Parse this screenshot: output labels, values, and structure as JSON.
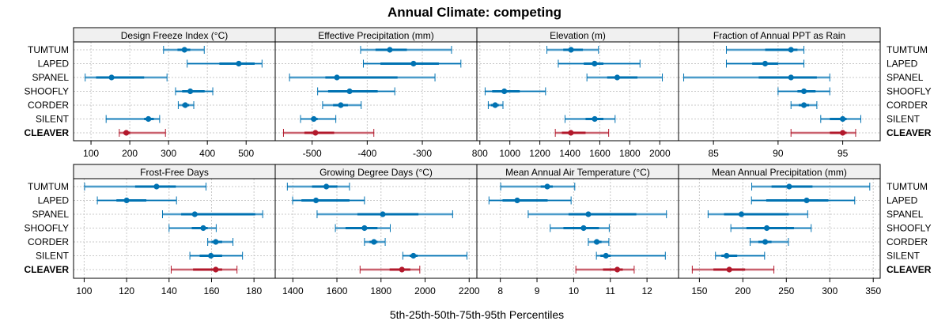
{
  "chart_data": {
    "type": "dotplot-percentiles",
    "title": "Annual Climate: competing",
    "xlabel": "5th-25th-50th-75th-95th Percentiles",
    "ylabel": "",
    "grid": true,
    "series_order": [
      "TUMTUM",
      "LAPED",
      "SPANEL",
      "SHOOFLY",
      "CORDER",
      "SILENT",
      "CLEAVER"
    ],
    "highlighted": "CLEAVER",
    "colors": {
      "default": "#0072b2",
      "default_light": "#6baed6",
      "highlight": "#b2182b",
      "highlight_light": "#d6868f",
      "strip_bg": "#f0f0f0",
      "grid": "#c8c8c8"
    },
    "label_sides": {
      "top_row": "both",
      "bottom_row": "both"
    },
    "percentile_keys": [
      "p5",
      "p25",
      "p50",
      "p75",
      "p95"
    ],
    "panels": [
      {
        "name": "Design Freeze Index (°C)",
        "xlim": [
          55,
          575
        ],
        "ticks": [
          100,
          200,
          300,
          400,
          500
        ],
        "tick_labels": [
          "100",
          "200",
          "300",
          "400",
          "500"
        ],
        "rows": {
          "TUMTUM": [
            287,
            323,
            341,
            356,
            392
          ],
          "LAPED": [
            348,
            431,
            481,
            522,
            541
          ],
          "SPANEL": [
            85,
            113,
            153,
            237,
            296
          ],
          "SHOOFLY": [
            318,
            335,
            356,
            393,
            414
          ],
          "CORDER": [
            325,
            335,
            343,
            353,
            365
          ],
          "SILENT": [
            139,
            237,
            248,
            262,
            277
          ],
          "CLEAVER": [
            173,
            183,
            191,
            201,
            292
          ]
        }
      },
      {
        "name": "Effective Precipitation (mm)",
        "xlim": [
          -567,
          -201
        ],
        "ticks": [
          -500,
          -400,
          -300
        ],
        "tick_labels": [
          "-500",
          "-400",
          "-300"
        ],
        "rows": {
          "TUMTUM": [
            -412,
            -385,
            -359,
            -328,
            -247
          ],
          "LAPED": [
            -407,
            -376,
            -316,
            -270,
            -230
          ],
          "SPANEL": [
            -541,
            -476,
            -455,
            -345,
            -277
          ],
          "SHOOFLY": [
            -490,
            -471,
            -432,
            -381,
            -350
          ],
          "CORDER": [
            -481,
            -462,
            -448,
            -435,
            -411
          ],
          "SILENT": [
            -521,
            -502,
            -497,
            -490,
            -457
          ],
          "CLEAVER": [
            -552,
            -514,
            -494,
            -460,
            -388
          ]
        }
      },
      {
        "name": "Elevation (m)",
        "xlim": [
          780,
          2125
        ],
        "ticks": [
          800,
          1000,
          1200,
          1400,
          1600,
          1800,
          2000
        ],
        "tick_labels": [
          "800",
          "1000",
          "1200",
          "1400",
          "1600",
          "1800",
          "2000"
        ],
        "rows": {
          "TUMTUM": [
            1247,
            1356,
            1408,
            1487,
            1591
          ],
          "LAPED": [
            1323,
            1493,
            1565,
            1624,
            1868
          ],
          "SPANEL": [
            1514,
            1649,
            1716,
            1851,
            2017
          ],
          "SHOOFLY": [
            835,
            882,
            963,
            1066,
            1238
          ],
          "CORDER": [
            856,
            874,
            902,
            926,
            954
          ],
          "SILENT": [
            1368,
            1505,
            1566,
            1624,
            1702
          ],
          "CLEAVER": [
            1303,
            1347,
            1407,
            1505,
            1659
          ]
        }
      },
      {
        "name": "Fraction of Annual PPT as Rain",
        "xlim": [
          82.3,
          97.9
        ],
        "ticks": [
          85,
          90,
          95
        ],
        "tick_labels": [
          "85",
          "90",
          "95"
        ],
        "rows": {
          "TUMTUM": [
            86.0,
            89.0,
            91.0,
            91.5,
            92.0
          ],
          "LAPED": [
            86.0,
            88.0,
            89.0,
            90.0,
            92.0
          ],
          "SPANEL": [
            82.7,
            88.5,
            91.0,
            93.0,
            94.0
          ],
          "SHOOFLY": [
            90.0,
            91.5,
            92.0,
            92.9,
            94.0
          ],
          "CORDER": [
            91.0,
            91.6,
            92.0,
            92.4,
            93.0
          ],
          "SILENT": [
            93.3,
            94.0,
            95.0,
            95.3,
            96.4
          ],
          "CLEAVER": [
            91.0,
            94.0,
            95.0,
            95.3,
            96.0
          ]
        }
      },
      {
        "name": "Frost-Free Days",
        "xlim": [
          95,
          190
        ],
        "ticks": [
          100,
          120,
          140,
          160,
          180
        ],
        "tick_labels": [
          "100",
          "120",
          "140",
          "160",
          "180"
        ],
        "rows": {
          "TUMTUM": [
            100.2,
            124.0,
            134.1,
            143.2,
            157.4
          ],
          "LAPED": [
            106.2,
            115.2,
            120.0,
            129.3,
            143.5
          ],
          "SPANEL": [
            136.9,
            145.7,
            152.1,
            180.6,
            184.1
          ],
          "SHOOFLY": [
            140.0,
            150.7,
            156.1,
            158.2,
            162.2
          ],
          "CORDER": [
            158.2,
            160.0,
            162.0,
            165.0,
            170.1
          ],
          "SILENT": [
            149.8,
            154.4,
            159.7,
            165.0,
            174.6
          ],
          "CLEAVER": [
            141.0,
            151.3,
            162.0,
            165.0,
            172.0
          ]
        }
      },
      {
        "name": "Growing Degree Days (°C)",
        "xlim": [
          1320,
          2235
        ],
        "ticks": [
          1400,
          1600,
          1800,
          2000,
          2200
        ],
        "tick_labels": [
          "1400",
          "1600",
          "1800",
          "2000",
          "2200"
        ],
        "rows": {
          "TUMTUM": [
            1375,
            1487,
            1552,
            1602,
            1657
          ],
          "LAPED": [
            1399,
            1439,
            1505,
            1657,
            1725
          ],
          "SPANEL": [
            1510,
            1693,
            1808,
            1970,
            2125
          ],
          "SHOOFLY": [
            1593,
            1639,
            1725,
            1784,
            1842
          ],
          "CORDER": [
            1725,
            1748,
            1768,
            1784,
            1819
          ],
          "SILENT": [
            1899,
            1930,
            1947,
            1966,
            2190
          ],
          "CLEAVER": [
            1705,
            1839,
            1895,
            1933,
            1976
          ]
        }
      },
      {
        "name": "Mean Annual Air Temperature (°C)",
        "xlim": [
          7.36,
          12.86
        ],
        "ticks": [
          8,
          9,
          10,
          11,
          12
        ],
        "tick_labels": [
          "8",
          "9",
          "10",
          "11",
          "12"
        ],
        "rows": {
          "TUMTUM": [
            8.01,
            9.1,
            9.28,
            9.43,
            10.03
          ],
          "LAPED": [
            7.69,
            8.06,
            8.46,
            9.29,
            9.93
          ],
          "SPANEL": [
            8.76,
            9.86,
            10.4,
            11.71,
            12.53
          ],
          "SHOOFLY": [
            9.36,
            9.72,
            10.27,
            10.69,
            10.97
          ],
          "CORDER": [
            10.4,
            10.55,
            10.63,
            10.76,
            10.96
          ],
          "SILENT": [
            10.62,
            10.73,
            10.88,
            11.01,
            12.5
          ],
          "CLEAVER": [
            10.06,
            10.8,
            11.19,
            11.34,
            11.65
          ]
        }
      },
      {
        "name": "Mean Annual Precipitation (mm)",
        "xlim": [
          126,
          358
        ],
        "ticks": [
          150,
          200,
          250,
          300,
          350
        ],
        "tick_labels": [
          "150",
          "200",
          "250",
          "300",
          "350"
        ],
        "rows": {
          "TUMTUM": [
            210.2,
            233.0,
            253.3,
            280.1,
            346.0
          ],
          "LAPED": [
            209.9,
            226.9,
            273.4,
            298.4,
            328.7
          ],
          "SPANEL": [
            160.0,
            178.3,
            198.3,
            252.8,
            274.6
          ],
          "SHOOFLY": [
            186.2,
            204.1,
            227.5,
            258.8,
            278.6
          ],
          "CORDER": [
            208.4,
            217.8,
            225.7,
            233.0,
            252.4
          ],
          "SILENT": [
            168.5,
            175.3,
            181.3,
            193.5,
            225.0
          ],
          "CLEAVER": [
            141.8,
            166.1,
            184.4,
            202.6,
            235.7
          ]
        }
      }
    ]
  }
}
